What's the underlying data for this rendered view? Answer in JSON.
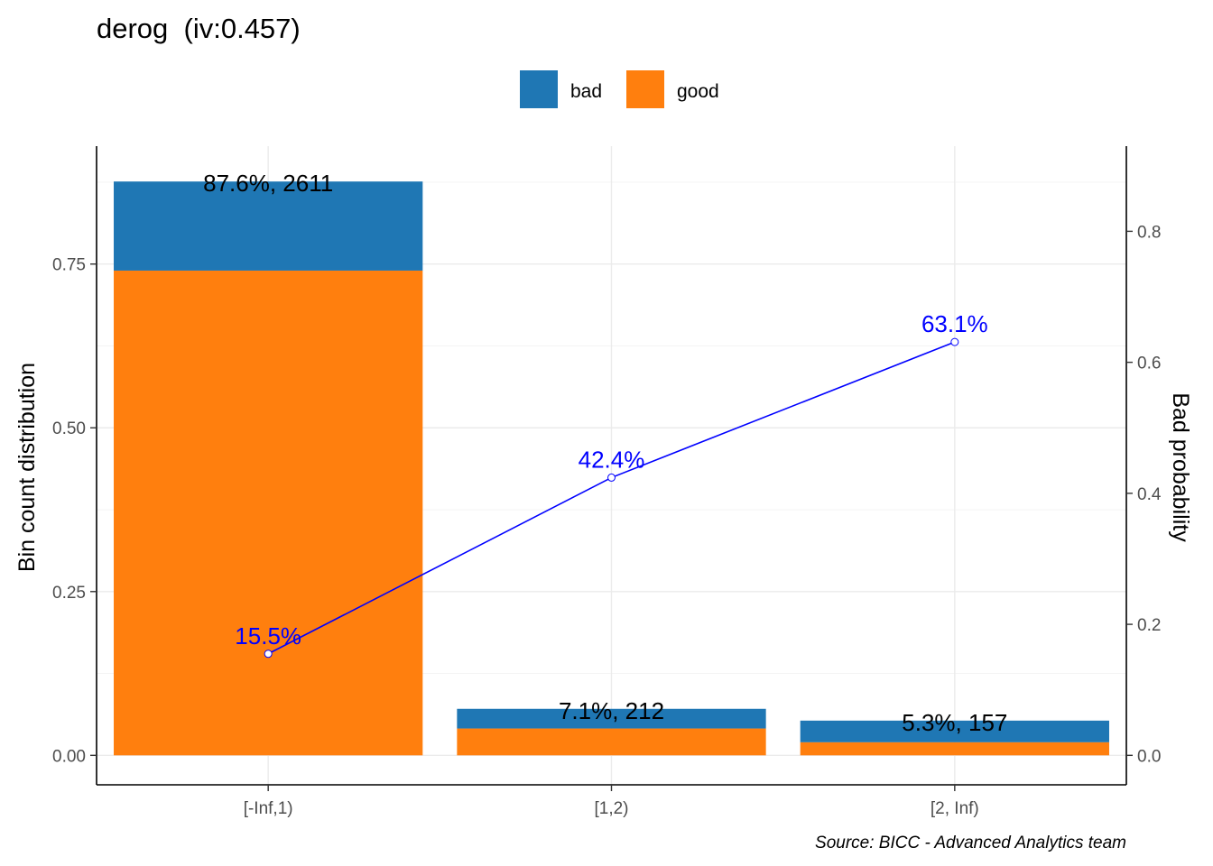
{
  "chart_data": {
    "type": "bar",
    "title": "derog  (iv:0.457)",
    "caption": "Source: BICC - Advanced Analytics team",
    "legend": {
      "placement": "top",
      "entries": [
        {
          "name": "bad",
          "color": "#1f77b4"
        },
        {
          "name": "good",
          "color": "#ff7f0e"
        }
      ]
    },
    "categories": [
      "[-Inf,1)",
      "[1,2)",
      "[2, Inf)"
    ],
    "series": [
      {
        "name": "good",
        "color": "#ff7f0e",
        "values": [
          0.74,
          0.041,
          0.02
        ]
      },
      {
        "name": "bad",
        "color": "#1f77b4",
        "values": [
          0.136,
          0.03,
          0.033
        ]
      }
    ],
    "bar_labels": [
      "87.6%, 2611",
      "7.1%, 212",
      "5.3%, 157"
    ],
    "bad_probability": {
      "values": [
        0.155,
        0.424,
        0.631
      ],
      "labels": [
        "15.5%",
        "42.4%",
        "63.1%"
      ],
      "color": "#0000ff"
    },
    "ylabel": "Bin count distribution",
    "ylim": [
      -0.045,
      0.93
    ],
    "yticks": [
      0,
      0.25,
      0.5,
      0.75
    ],
    "yticklabels": [
      "0.00",
      "0.25",
      "0.50",
      "0.75"
    ],
    "y2label": "Bad probability",
    "y2lim": [
      -0.045,
      0.93
    ],
    "y2ticks": [
      0,
      0.2,
      0.4,
      0.6,
      0.8
    ],
    "y2ticklabels": [
      "0.0",
      "0.2",
      "0.4",
      "0.6",
      "0.8"
    ],
    "grid": true
  }
}
